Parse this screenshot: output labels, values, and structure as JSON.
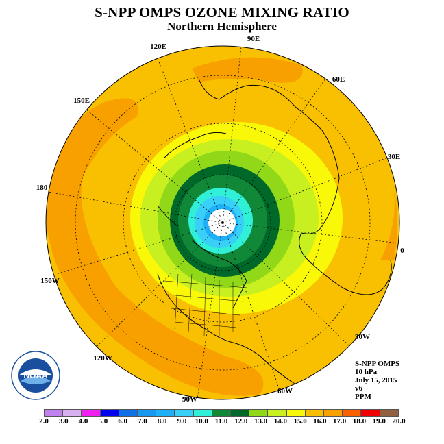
{
  "title": "S-NPP OMPS OZONE MIXING RATIO",
  "subtitle": "Northern Hemisphere",
  "longitude_labels": {
    "e90": "90E",
    "e60": "60E",
    "e30": "30E",
    "zero": "0",
    "w30": "30W",
    "w60": "60W",
    "w90": "90W",
    "w120": "120W",
    "w150": "150W",
    "d180": "180",
    "e150": "150E",
    "e120": "120E"
  },
  "info": {
    "instrument": "S-NPP OMPS",
    "level": "10 hPa",
    "date": "July 15, 2015",
    "version": "v6",
    "units": "PPM"
  },
  "logo_text": "NOAA",
  "colorbar": {
    "ticks": [
      "2.0",
      "3.0",
      "4.0",
      "5.0",
      "6.0",
      "7.0",
      "8.0",
      "9.0",
      "10.0",
      "11.0",
      "12.0",
      "13.0",
      "14.0",
      "15.0",
      "16.0",
      "17.0",
      "18.0",
      "19.0",
      "20.0"
    ],
    "colors": [
      "#c080f0",
      "#d8b0f0",
      "#f020f0",
      "#0000f0",
      "#1070e8",
      "#1898f0",
      "#20b0f8",
      "#38d0f8",
      "#30f0d8",
      "#108838",
      "#006828",
      "#90d818",
      "#c8f020",
      "#f8f808",
      "#f8c000",
      "#f8a000",
      "#f86000",
      "#f00000",
      "#906040"
    ]
  }
}
